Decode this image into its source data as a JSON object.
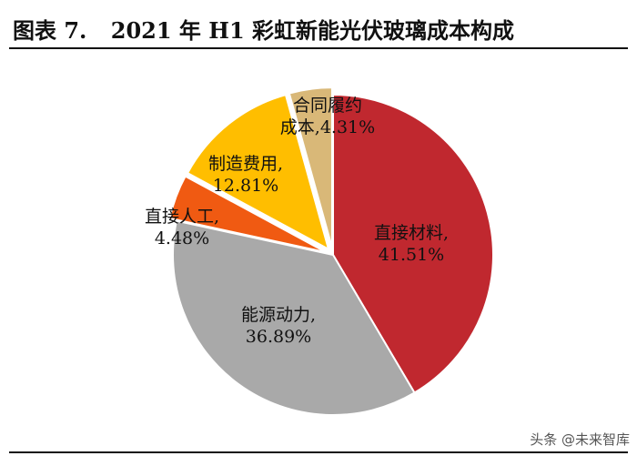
{
  "header": {
    "figure_number": "图表 7.",
    "title": "2021 年 H1 彩虹新能光伏玻璃成本构成"
  },
  "watermark": "头条 @未来智库",
  "chart_data": {
    "type": "pie",
    "title": "2021 年 H1 彩虹新能光伏玻璃成本构成",
    "slices": [
      {
        "name": "直接材料",
        "value": 41.51,
        "label": "41.51%",
        "color": "#C0282F"
      },
      {
        "name": "能源动力",
        "value": 36.89,
        "label": "36.89%",
        "color": "#A9A9A9"
      },
      {
        "name": "直接人工",
        "value": 4.48,
        "label": "4.48%",
        "color": "#F05A12"
      },
      {
        "name": "制造费用",
        "value": 12.81,
        "label": "12.81%",
        "color": "#FFBE00"
      },
      {
        "name": "合同履约成本",
        "value": 4.31,
        "label": "4.31%",
        "color": "#D9B878"
      }
    ],
    "legend": "none"
  }
}
